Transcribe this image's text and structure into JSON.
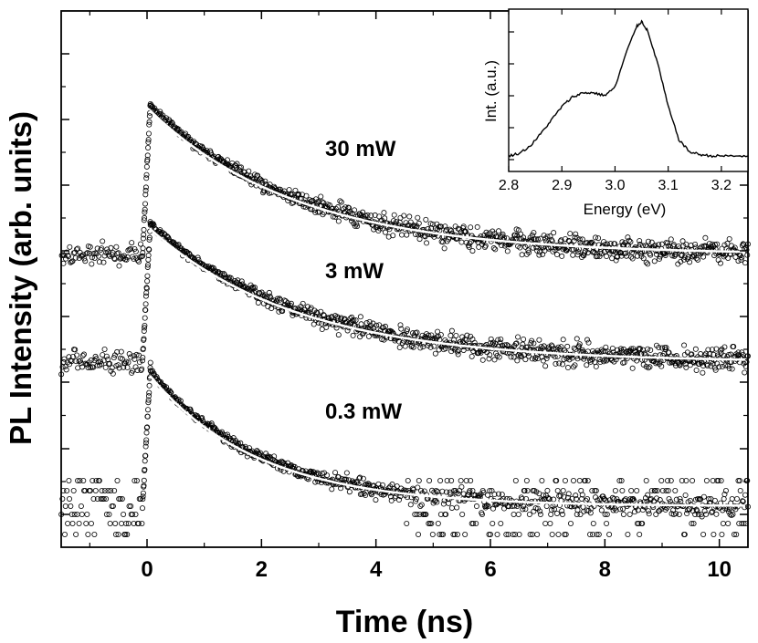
{
  "chart_data": [
    {
      "type": "scatter",
      "title": "",
      "xlabel": "Time (ns)",
      "ylabel": "PL Intensity (arb. units)",
      "xlim": [
        -1.5,
        10.5
      ],
      "x_ticks": [
        0,
        2,
        4,
        6,
        8,
        10
      ],
      "x_tick_labels": [
        "0",
        "2",
        "4",
        "6",
        "8",
        "10"
      ],
      "y_scale": "log",
      "y_tick_labels_shown": false,
      "series": [
        {
          "name": "30 mW",
          "label": "30 mW",
          "rise_time_ns": 0.0,
          "background": 0.05,
          "peak": 1.0,
          "decay_ns": 2.6,
          "fit": "white solid line (exponential)"
        },
        {
          "name": "3 mW",
          "label": "3 mW",
          "rise_time_ns": 0.0,
          "background": 0.05,
          "peak": 1.0,
          "decay_ns": 2.6,
          "fit": "white solid line (exponential)"
        },
        {
          "name": "0.3 mW",
          "label": "0.3 mW",
          "rise_time_ns": 0.0,
          "background": 0.05,
          "peak": 1.0,
          "decay_ns": 1.9,
          "fit": "white solid line (exponential)"
        }
      ]
    },
    {
      "type": "line",
      "inset": true,
      "xlabel": "Energy (eV)",
      "ylabel": "Int. (a.u.)",
      "xlim": [
        2.8,
        3.25
      ],
      "x_ticks": [
        2.8,
        2.9,
        3.0,
        3.1,
        3.2
      ],
      "x_tick_labels": [
        "2.8",
        "2.9",
        "3.0",
        "3.1",
        "3.2"
      ],
      "ylim": [
        0,
        1.05
      ],
      "x": [
        2.8,
        2.82,
        2.84,
        2.86,
        2.88,
        2.9,
        2.92,
        2.94,
        2.96,
        2.98,
        3.0,
        3.02,
        3.04,
        3.05,
        3.06,
        3.08,
        3.1,
        3.12,
        3.14,
        3.16,
        3.18,
        3.2,
        3.22,
        3.25
      ],
      "y": [
        0.02,
        0.04,
        0.09,
        0.18,
        0.28,
        0.38,
        0.45,
        0.48,
        0.48,
        0.46,
        0.52,
        0.76,
        0.96,
        1.0,
        0.94,
        0.7,
        0.38,
        0.14,
        0.05,
        0.03,
        0.02,
        0.02,
        0.02,
        0.02
      ]
    }
  ]
}
